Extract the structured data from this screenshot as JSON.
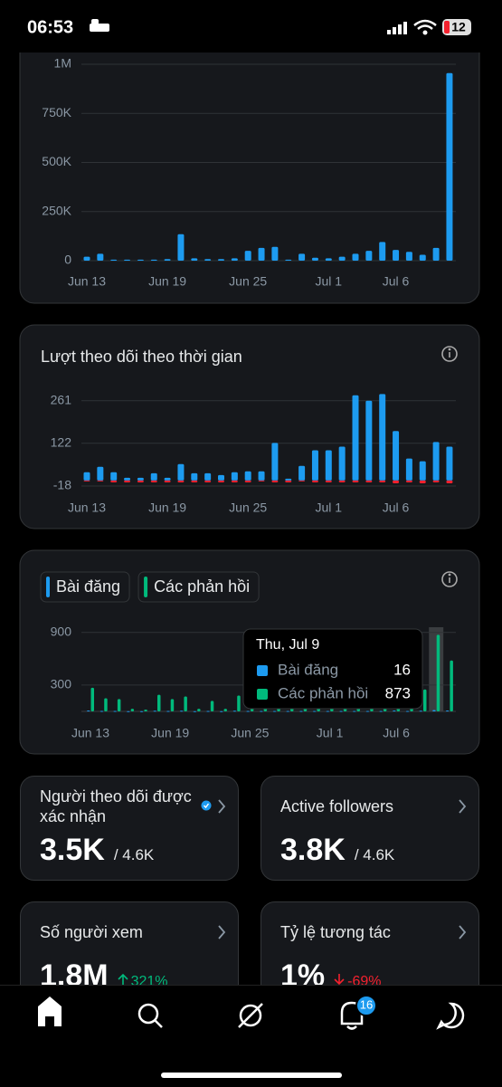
{
  "status_bar": {
    "time": "06:53",
    "battery": "12"
  },
  "charts": [
    {
      "type": "bar",
      "categories": [
        "Jun 13",
        null,
        null,
        null,
        null,
        null,
        "Jun 19",
        null,
        null,
        null,
        null,
        null,
        "Jun 25",
        null,
        null,
        null,
        null,
        null,
        "Jul 1",
        null,
        null,
        null,
        null,
        "Jul 6",
        null,
        null,
        null,
        null
      ],
      "series": [
        {
          "color": "#1d9bf0",
          "values": [
            20000,
            35000,
            5000,
            5000,
            5000,
            5000,
            8000,
            135000,
            12000,
            8000,
            8000,
            12000,
            50000,
            65000,
            70000,
            5000,
            35000,
            15000,
            12000,
            20000,
            35000,
            50000,
            95000,
            55000,
            45000,
            30000,
            65000,
            955000
          ]
        }
      ],
      "ylim": [
        0,
        1000000
      ],
      "yticks": [
        0,
        {
          "value": 250000,
          "label": "250K"
        },
        {
          "value": 500000,
          "label": "500K"
        },
        {
          "value": 750000,
          "label": "750K"
        },
        {
          "value": 1000000,
          "label": "1M"
        }
      ],
      "grid": true
    },
    {
      "type": "bar",
      "title": "Lượt theo dõi theo thời gian",
      "categories": [
        "Jun 13",
        null,
        null,
        null,
        null,
        null,
        "Jun 19",
        null,
        null,
        null,
        null,
        null,
        "Jun 25",
        null,
        null,
        null,
        null,
        null,
        "Jul 1",
        null,
        null,
        null,
        null,
        "Jul 6",
        null,
        null,
        null,
        null
      ],
      "series": [
        {
          "color": "#1d9bf0",
          "values": [
            27,
            45,
            27,
            9,
            9,
            24,
            9,
            54,
            24,
            24,
            18,
            27,
            30,
            30,
            123,
            6,
            48,
            99,
            99,
            111,
            279,
            261,
            283,
            162,
            72,
            63,
            126,
            111
          ]
        },
        {
          "color": "#f4212e",
          "values": [
            0,
            0,
            -6,
            -6,
            -6,
            -6,
            -6,
            -6,
            -6,
            -6,
            -6,
            -6,
            -6,
            -3,
            -6,
            -6,
            -3,
            -6,
            -6,
            -6,
            -6,
            -6,
            -6,
            -9,
            -6,
            -9,
            -6,
            -9
          ]
        }
      ],
      "ylim": [
        -18,
        290
      ],
      "yticks": [
        -18,
        122,
        261
      ],
      "grid": true
    },
    {
      "type": "bar",
      "categories": [
        "Jun 13",
        null,
        null,
        null,
        null,
        null,
        "Jun 19",
        null,
        null,
        null,
        null,
        null,
        "Jun 25",
        null,
        null,
        null,
        null,
        null,
        "Jul 1",
        null,
        null,
        null,
        null,
        "Jul 6",
        null,
        null,
        null,
        null
      ],
      "series": [
        {
          "name": "Bài đăng",
          "color": "#1d9bf0",
          "values": [
            10,
            5,
            5,
            3,
            3,
            8,
            5,
            8,
            3,
            5,
            3,
            8,
            5,
            5,
            5,
            5,
            5,
            5,
            5,
            5,
            5,
            5,
            5,
            10,
            5,
            8,
            16,
            10
          ]
        },
        {
          "name": "Các phản hồi",
          "color": "#00ba7c",
          "values": [
            270,
            150,
            140,
            30,
            20,
            190,
            140,
            170,
            30,
            120,
            30,
            180,
            60,
            40,
            40,
            50,
            60,
            40,
            40,
            60,
            80,
            60,
            50,
            60,
            50,
            250,
            873,
            580
          ]
        }
      ],
      "ylim": [
        0,
        980
      ],
      "yticks": [
        300,
        900
      ],
      "grid": true,
      "legend": true,
      "tooltip": {
        "date": "Thu, Jul 9"
      }
    }
  ],
  "cards": [
    {
      "label": "Người theo dõi được xác nhận",
      "value": "3.5K",
      "total": "/ 4.6K",
      "verified": true
    },
    {
      "label": "Active followers",
      "value": "3.8K",
      "total": "/ 4.6K"
    },
    {
      "label": "Số người xem",
      "value": "1.8M",
      "change": "321%",
      "trend": "up"
    },
    {
      "label": "Tỷ lệ tương tác",
      "value": "1%",
      "change": "-69%",
      "trend": "down"
    }
  ],
  "tab_bar": {
    "notifications": 16
  }
}
